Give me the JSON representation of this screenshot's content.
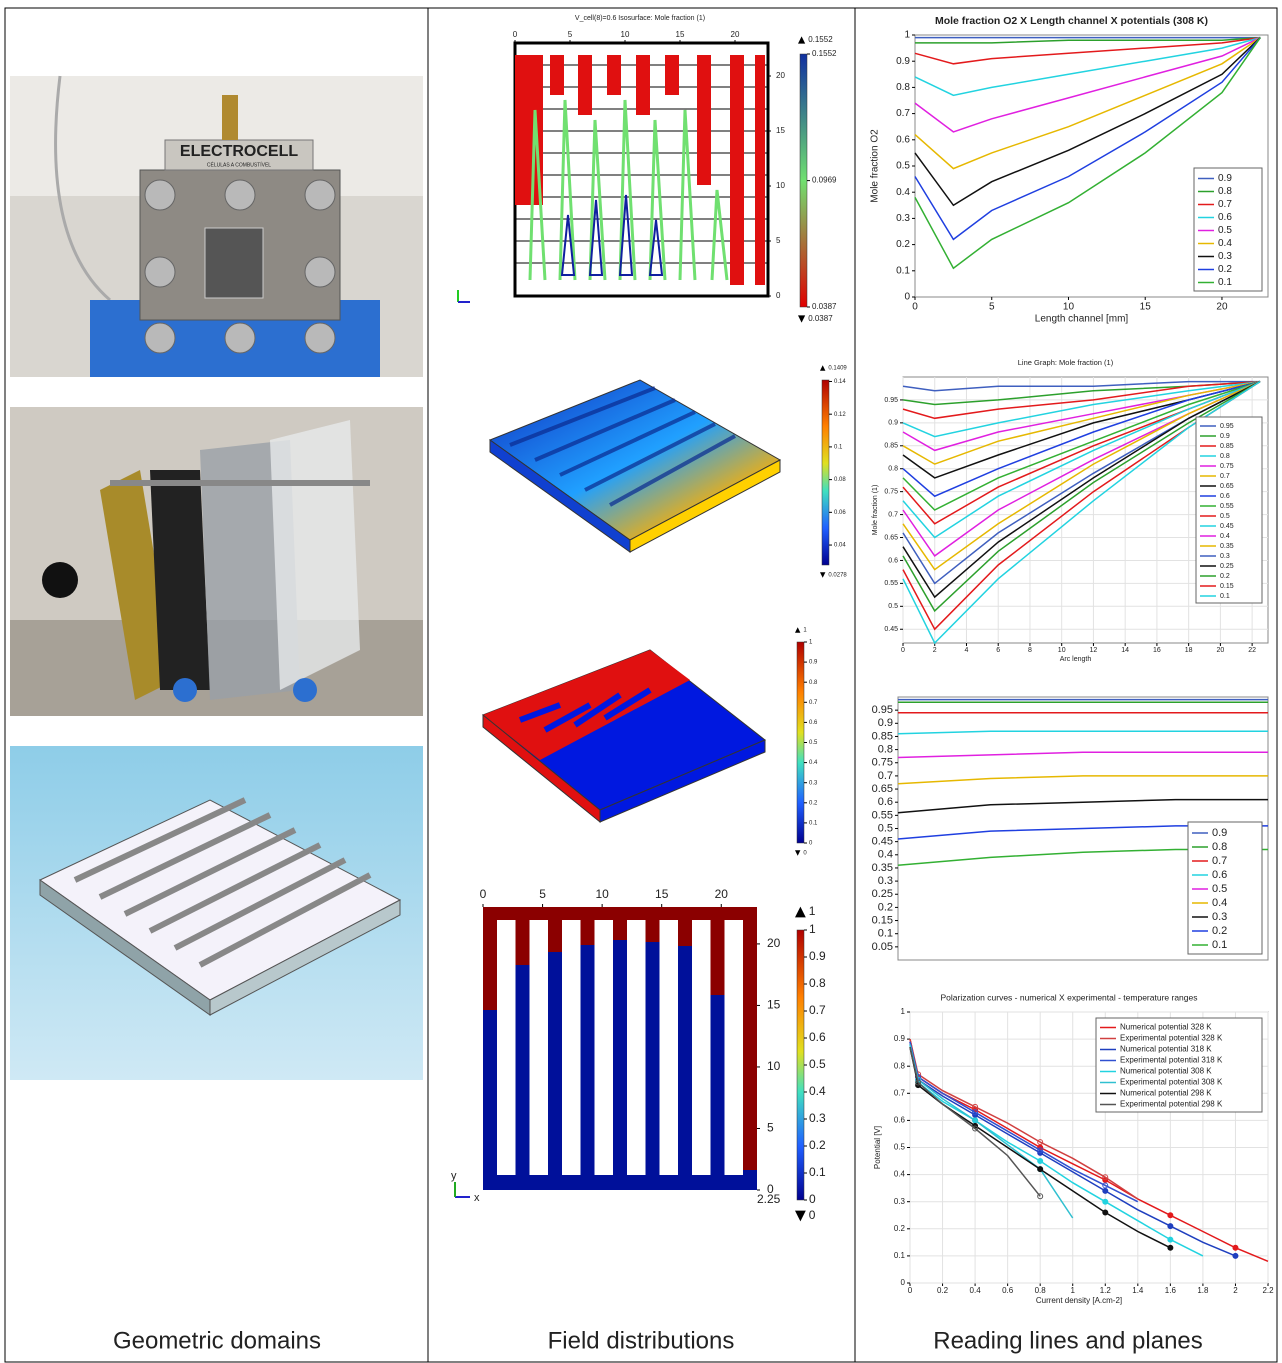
{
  "captions": [
    "Geometric domains",
    "Field distributions",
    "Reading lines and planes"
  ],
  "photos": {
    "brand": "ELECTROCELL",
    "brand_sub": "CÉLULAS A COMBUSTÍVEL"
  },
  "field_plots": [
    {
      "title": "V_cell(8)=0.6   Isosurface: Mole fraction (1)",
      "xlim": [
        0,
        23
      ],
      "ylim": [
        0,
        23
      ],
      "xticks": [
        0,
        5,
        10,
        15,
        20
      ],
      "yticks": [
        0,
        5,
        10,
        15,
        20
      ],
      "cmax": 0.1552,
      "cmin": 0.0387,
      "cticks": [
        0.1552,
        0.0969,
        0.0387
      ]
    },
    {
      "cmax": 0.1409,
      "cmin": 0.0278,
      "cticks": [
        0.14,
        0.12,
        0.1,
        0.08,
        0.06,
        0.04
      ]
    },
    {
      "cmax": 1,
      "cmin": 0,
      "cticks": [
        1,
        0.9,
        0.8,
        0.7,
        0.6,
        0.5,
        0.4,
        0.3,
        0.2,
        0.1,
        0
      ]
    },
    {
      "xlim": [
        0,
        23
      ],
      "ylim": [
        0,
        23
      ],
      "xticks": [
        0,
        5,
        10,
        15,
        20
      ],
      "yticks": [
        0,
        5,
        10,
        15,
        20
      ],
      "cmax": 1,
      "cmin": 0,
      "cticks": [
        1,
        0.9,
        0.8,
        0.7,
        0.6,
        0.5,
        0.4,
        0.3,
        0.2,
        0.1,
        0
      ],
      "depth": 2.25,
      "xlabel": "x",
      "ylabel": "y"
    }
  ],
  "chart_data": [
    {
      "type": "line",
      "title": "Mole fraction O2  X  Length channel  X potentials (308 K)",
      "xlabel": "Length channel [mm]",
      "ylabel": "Mole fraction O2",
      "x": [
        0,
        2.5,
        5,
        10,
        15,
        20,
        22.5
      ],
      "xlim": [
        0,
        23
      ],
      "xticks": [
        0,
        5,
        10,
        15,
        20
      ],
      "ylim": [
        0,
        1
      ],
      "yticks": [
        0,
        0.1,
        0.2,
        0.3,
        0.4,
        0.5,
        0.6,
        0.7,
        0.8,
        0.9,
        1
      ],
      "grid": false,
      "legend": "lower right",
      "series": [
        {
          "name": "0.9",
          "color": "#3f5fbf",
          "values": [
            0.99,
            0.99,
            0.99,
            0.99,
            0.99,
            0.99,
            0.99
          ]
        },
        {
          "name": "0.8",
          "color": "#2ca02c",
          "values": [
            0.97,
            0.97,
            0.97,
            0.98,
            0.98,
            0.98,
            0.99
          ]
        },
        {
          "name": "0.7",
          "color": "#e31a1c",
          "values": [
            0.93,
            0.89,
            0.91,
            0.93,
            0.95,
            0.97,
            0.99
          ]
        },
        {
          "name": "0.6",
          "color": "#22d3e0",
          "values": [
            0.84,
            0.77,
            0.8,
            0.85,
            0.9,
            0.95,
            0.99
          ]
        },
        {
          "name": "0.5",
          "color": "#e020e0",
          "values": [
            0.74,
            0.63,
            0.68,
            0.76,
            0.84,
            0.92,
            0.99
          ]
        },
        {
          "name": "0.4",
          "color": "#e6b800",
          "values": [
            0.62,
            0.49,
            0.55,
            0.65,
            0.77,
            0.89,
            0.99
          ]
        },
        {
          "name": "0.3",
          "color": "#111111",
          "values": [
            0.55,
            0.35,
            0.44,
            0.56,
            0.7,
            0.85,
            0.99
          ]
        },
        {
          "name": "0.2",
          "color": "#1f3fe0",
          "values": [
            0.46,
            0.22,
            0.33,
            0.46,
            0.63,
            0.82,
            0.99
          ]
        },
        {
          "name": "0.1",
          "color": "#33b033",
          "values": [
            0.38,
            0.11,
            0.22,
            0.36,
            0.55,
            0.78,
            0.99
          ]
        }
      ]
    },
    {
      "type": "line",
      "title": "Line Graph: Mole fraction (1)",
      "xlabel": "Arc length",
      "ylabel": "Mole fraction (1)",
      "x": [
        0,
        2,
        6,
        12,
        18,
        22.5
      ],
      "xlim": [
        0,
        23
      ],
      "xticks": [
        0,
        2,
        4,
        6,
        8,
        10,
        12,
        14,
        16,
        18,
        20,
        22
      ],
      "ylim": [
        0.42,
        1
      ],
      "yticks": [
        0.45,
        0.5,
        0.55,
        0.6,
        0.65,
        0.7,
        0.75,
        0.8,
        0.85,
        0.9,
        0.95
      ],
      "grid": true,
      "legend": "center right",
      "series": [
        {
          "name": "0.95",
          "color": "#3f5fbf",
          "values": [
            0.98,
            0.97,
            0.98,
            0.98,
            0.99,
            0.99
          ]
        },
        {
          "name": "0.9",
          "color": "#2ca02c",
          "values": [
            0.95,
            0.94,
            0.95,
            0.97,
            0.98,
            0.99
          ]
        },
        {
          "name": "0.85",
          "color": "#e31a1c",
          "values": [
            0.93,
            0.91,
            0.93,
            0.95,
            0.98,
            0.99
          ]
        },
        {
          "name": "0.8",
          "color": "#22d3e0",
          "values": [
            0.9,
            0.87,
            0.9,
            0.94,
            0.97,
            0.99
          ]
        },
        {
          "name": "0.75",
          "color": "#e020e0",
          "values": [
            0.88,
            0.84,
            0.88,
            0.92,
            0.96,
            0.99
          ]
        },
        {
          "name": "0.7",
          "color": "#e6b800",
          "values": [
            0.85,
            0.81,
            0.86,
            0.91,
            0.96,
            0.99
          ]
        },
        {
          "name": "0.65",
          "color": "#111111",
          "values": [
            0.83,
            0.78,
            0.83,
            0.9,
            0.95,
            0.99
          ]
        },
        {
          "name": "0.6",
          "color": "#1f3fe0",
          "values": [
            0.8,
            0.74,
            0.8,
            0.88,
            0.95,
            0.99
          ]
        },
        {
          "name": "0.55",
          "color": "#33b033",
          "values": [
            0.78,
            0.71,
            0.78,
            0.86,
            0.94,
            0.99
          ]
        },
        {
          "name": "0.5",
          "color": "#e31a1c",
          "values": [
            0.76,
            0.68,
            0.76,
            0.85,
            0.93,
            0.99
          ]
        },
        {
          "name": "0.45",
          "color": "#22d3e0",
          "values": [
            0.73,
            0.65,
            0.74,
            0.84,
            0.93,
            0.99
          ]
        },
        {
          "name": "0.4",
          "color": "#e020e0",
          "values": [
            0.71,
            0.61,
            0.71,
            0.82,
            0.92,
            0.99
          ]
        },
        {
          "name": "0.35",
          "color": "#e6b800",
          "values": [
            0.68,
            0.58,
            0.68,
            0.81,
            0.92,
            0.99
          ]
        },
        {
          "name": "0.3",
          "color": "#3f5fbf",
          "values": [
            0.66,
            0.55,
            0.66,
            0.79,
            0.91,
            0.99
          ]
        },
        {
          "name": "0.25",
          "color": "#111111",
          "values": [
            0.63,
            0.52,
            0.64,
            0.78,
            0.91,
            0.99
          ]
        },
        {
          "name": "0.2",
          "color": "#2ca02c",
          "values": [
            0.61,
            0.49,
            0.62,
            0.77,
            0.9,
            0.99
          ]
        },
        {
          "name": "0.15",
          "color": "#e31a1c",
          "values": [
            0.58,
            0.45,
            0.59,
            0.75,
            0.89,
            0.99
          ]
        },
        {
          "name": "0.1",
          "color": "#22d3e0",
          "values": [
            0.56,
            0.42,
            0.56,
            0.73,
            0.89,
            0.99
          ]
        }
      ]
    },
    {
      "type": "line",
      "x": [
        0,
        0.25,
        0.5,
        0.75,
        1
      ],
      "xlim": [
        0,
        1
      ],
      "ylim": [
        0,
        1
      ],
      "yticks": [
        0.05,
        0.1,
        0.15,
        0.2,
        0.25,
        0.3,
        0.35,
        0.4,
        0.45,
        0.5,
        0.55,
        0.6,
        0.65,
        0.7,
        0.75,
        0.8,
        0.85,
        0.9,
        0.95
      ],
      "grid": false,
      "legend": "lower right",
      "series": [
        {
          "name": "0.9",
          "color": "#3f5fbf",
          "values": [
            0.99,
            0.99,
            0.99,
            0.99,
            0.99
          ]
        },
        {
          "name": "0.8",
          "color": "#2ca02c",
          "values": [
            0.98,
            0.98,
            0.98,
            0.98,
            0.98
          ]
        },
        {
          "name": "0.7",
          "color": "#e31a1c",
          "values": [
            0.94,
            0.94,
            0.94,
            0.94,
            0.94
          ]
        },
        {
          "name": "0.6",
          "color": "#22d3e0",
          "values": [
            0.86,
            0.87,
            0.87,
            0.87,
            0.87
          ]
        },
        {
          "name": "0.5",
          "color": "#e020e0",
          "values": [
            0.77,
            0.78,
            0.79,
            0.79,
            0.79
          ]
        },
        {
          "name": "0.4",
          "color": "#e6b800",
          "values": [
            0.67,
            0.69,
            0.7,
            0.7,
            0.7
          ]
        },
        {
          "name": "0.3",
          "color": "#111111",
          "values": [
            0.56,
            0.59,
            0.6,
            0.61,
            0.61
          ]
        },
        {
          "name": "0.2",
          "color": "#1f3fe0",
          "values": [
            0.46,
            0.49,
            0.5,
            0.51,
            0.51
          ]
        },
        {
          "name": "0.1",
          "color": "#33b033",
          "values": [
            0.36,
            0.39,
            0.41,
            0.42,
            0.42
          ]
        }
      ]
    },
    {
      "type": "line",
      "title": "Polarization curves  -  numerical X experimental  -  temperature ranges",
      "xlabel": "Current density  [A.cm-2]",
      "ylabel": "Potential  [V]",
      "x": [
        0,
        0.05,
        0.2,
        0.4,
        0.6,
        0.8,
        1,
        1.2,
        1.4,
        1.6,
        1.8,
        2,
        2.2
      ],
      "xlim": [
        0,
        2.2
      ],
      "xticks": [
        0,
        0.2,
        0.4,
        0.6,
        0.8,
        1,
        1.2,
        1.4,
        1.6,
        1.8,
        2,
        2.2
      ],
      "ylim": [
        0,
        1
      ],
      "yticks": [
        0,
        0.1,
        0.2,
        0.3,
        0.4,
        0.5,
        0.6,
        0.7,
        0.8,
        0.9,
        1
      ],
      "grid": true,
      "legend": "upper right",
      "markers": true,
      "series": [
        {
          "name": "Numerical potential  328 K",
          "color": "#e31a1c",
          "values": [
            0.9,
            0.76,
            0.7,
            0.64,
            0.57,
            0.5,
            0.44,
            0.38,
            0.31,
            0.25,
            0.19,
            0.13,
            0.08
          ]
        },
        {
          "name": "Experimental potential 328 K",
          "color": "#d04040",
          "values": [
            0.9,
            0.77,
            0.71,
            0.65,
            0.59,
            0.52,
            0.46,
            0.39,
            0.31,
            null,
            null,
            null,
            null
          ]
        },
        {
          "name": "Numerical potential  318 K",
          "color": "#1f3fbf",
          "values": [
            0.89,
            0.75,
            0.69,
            0.62,
            0.55,
            0.48,
            0.41,
            0.34,
            0.27,
            0.21,
            0.15,
            0.1,
            null
          ]
        },
        {
          "name": "Experimental potential 318 K",
          "color": "#3050d0",
          "values": [
            0.89,
            0.76,
            0.7,
            0.63,
            0.56,
            0.49,
            0.42,
            0.36,
            0.3,
            null,
            null,
            null,
            null
          ]
        },
        {
          "name": "Numerical potential  308 K",
          "color": "#22d3e0",
          "values": [
            0.88,
            0.74,
            0.67,
            0.6,
            0.52,
            0.45,
            0.37,
            0.3,
            0.23,
            0.16,
            0.1,
            null,
            null
          ]
        },
        {
          "name": "Experimental potential 308 K",
          "color": "#30c0d0",
          "values": [
            0.88,
            0.75,
            0.68,
            0.6,
            0.51,
            0.42,
            0.24,
            null,
            null,
            null,
            null,
            null,
            null
          ]
        },
        {
          "name": "Numerical potential  298 K",
          "color": "#111111",
          "values": [
            0.87,
            0.73,
            0.66,
            0.58,
            0.5,
            0.42,
            0.34,
            0.26,
            0.19,
            0.13,
            null,
            null,
            null
          ]
        },
        {
          "name": "Experimental potential 298 K",
          "color": "#555555",
          "values": [
            0.87,
            0.74,
            0.66,
            0.57,
            0.47,
            0.32,
            null,
            null,
            null,
            null,
            null,
            null,
            null
          ]
        }
      ]
    }
  ]
}
